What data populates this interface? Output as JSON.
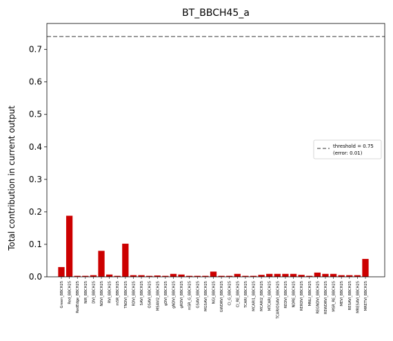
{
  "chart_data": {
    "type": "bar",
    "title": "BT_BBCH45_a",
    "xlabel": "",
    "ylabel": "Total contribution in current output",
    "ylim": [
      0,
      0.78
    ],
    "yticks": [
      "0.0",
      "0.1",
      "0.2",
      "0.3",
      "0.4",
      "0.5",
      "0.6",
      "0.7"
    ],
    "bar_color": "#cc0000",
    "threshold": {
      "value": 0.74,
      "color": "#777777",
      "legend_line1": "threshold = 0.75",
      "legend_line2": "(error: 0.01)"
    },
    "legend_position": "center-right",
    "categories": [
      "Green_BBCH25",
      "Red_BBCH25",
      "RedEdge_BBCH25",
      "NIR_BBCH25",
      "DVI_BBCH25",
      "NDVI_BBCH25",
      "RVI_BBCH25",
      "mSR_BBCH25",
      "TNDVI_BBCH25",
      "RDVI_BBCH25",
      "SAVI_BBCH25",
      "OSAVI_BBCH25",
      "MSAVI2_BBCH25",
      "gDVI_BBCH25",
      "gNDVI_BBCH25",
      "gRDVI_BBCH25",
      "mSR_G_BBCH25",
      "GSAVI_BBCH25",
      "MGSAVI_BBCH25",
      "NGI_BBCH25",
      "GWDRVI_BBCH25",
      "CI_G_BBCH25",
      "CI_RE_BBCH25",
      "TCARI_BBCH25",
      "MCARI1_BBCH25",
      "MCARI2_BBCH25",
      "MTCARI_BBCH25",
      "TCARIOSAVI_BBCH25",
      "REDVI_BBCH25",
      "NDRE_BBCH25",
      "RERDVI_BBCH25",
      "MNLI_BBCH25",
      "REGNDVI_BBCH25",
      "REWDRVI_BBCH25",
      "MSR_RE_BBCH25",
      "MEVI_BBCH25",
      "RESAVI_BBCH25",
      "MRESAVI_BBCH25",
      "MRETVI_BBCH25"
    ],
    "values": [
      0.03,
      0.188,
      0.003,
      0.003,
      0.005,
      0.08,
      0.007,
      0.003,
      0.102,
      0.005,
      0.005,
      0.003,
      0.004,
      0.003,
      0.009,
      0.007,
      0.003,
      0.003,
      0.003,
      0.016,
      0.003,
      0.003,
      0.009,
      0.003,
      0.003,
      0.006,
      0.009,
      0.009,
      0.009,
      0.009,
      0.006,
      0.003,
      0.013,
      0.009,
      0.009,
      0.005,
      0.005,
      0.005,
      0.055
    ]
  }
}
